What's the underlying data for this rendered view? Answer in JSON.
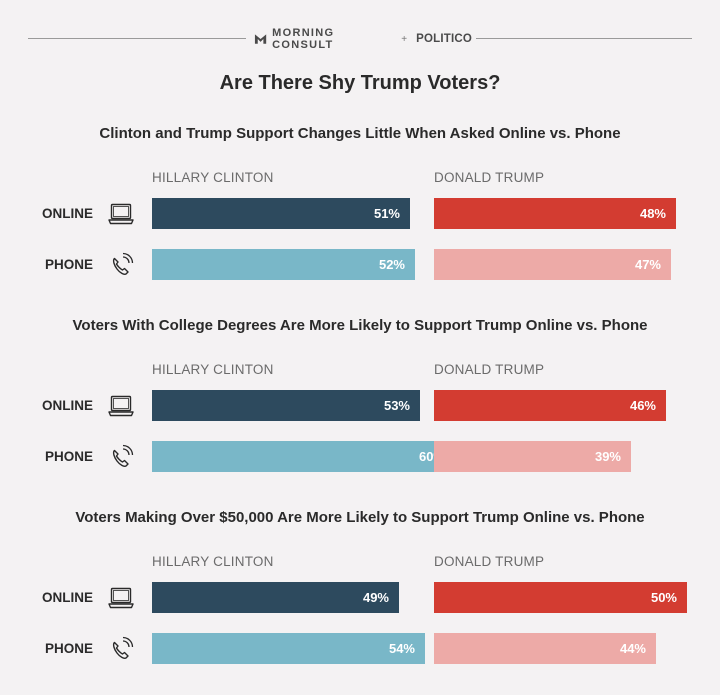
{
  "header": {
    "brand": "MORNING CONSULT",
    "separator": "+",
    "partner": "POLITICO"
  },
  "title": "Are There Shy Trump Voters?",
  "colors": {
    "clinton_online": "#2d4a5e",
    "clinton_phone": "#79b7c8",
    "trump_online": "#d33c31",
    "trump_phone": "#edaaa7"
  },
  "icons": {
    "online": "laptop-icon",
    "phone": "phone-icon"
  },
  "chart_data": [
    {
      "type": "bar",
      "title": "Clinton and Trump Support Changes Little When Asked Online vs. Phone",
      "candidates": [
        "HILLARY CLINTON",
        "DONALD TRUMP"
      ],
      "rows": [
        "ONLINE",
        "PHONE"
      ],
      "series": [
        {
          "name": "HILLARY CLINTON",
          "values": [
            51,
            52
          ],
          "labels": [
            "51%",
            "52%"
          ]
        },
        {
          "name": "DONALD TRUMP",
          "values": [
            48,
            47
          ],
          "labels": [
            "48%",
            "47%"
          ]
        }
      ]
    },
    {
      "type": "bar",
      "title": "Voters With College Degrees Are More Likely to Support Trump Online vs. Phone",
      "candidates": [
        "HILLARY CLINTON",
        "DONALD TRUMP"
      ],
      "rows": [
        "ONLINE",
        "PHONE"
      ],
      "series": [
        {
          "name": "HILLARY CLINTON",
          "values": [
            53,
            60
          ],
          "labels": [
            "53%",
            "60%"
          ]
        },
        {
          "name": "DONALD TRUMP",
          "values": [
            46,
            39
          ],
          "labels": [
            "46%",
            "39%"
          ]
        }
      ]
    },
    {
      "type": "bar",
      "title": "Voters Making Over $50,000 Are More Likely to Support Trump Online vs. Phone",
      "candidates": [
        "HILLARY CLINTON",
        "DONALD TRUMP"
      ],
      "rows": [
        "ONLINE",
        "PHONE"
      ],
      "series": [
        {
          "name": "HILLARY CLINTON",
          "values": [
            49,
            54
          ],
          "labels": [
            "49%",
            "54%"
          ]
        },
        {
          "name": "DONALD TRUMP",
          "values": [
            50,
            44
          ],
          "labels": [
            "50%",
            "44%"
          ]
        }
      ]
    }
  ]
}
